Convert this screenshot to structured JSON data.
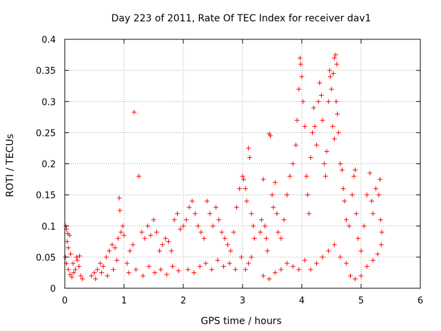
{
  "chart_data": {
    "type": "scatter",
    "title": "Day 223 of 2011, Rate Of TEC Index for receiver dav1",
    "xlabel": "GPS time / hours",
    "ylabel": "ROTI / TECUs",
    "xlim": [
      0,
      6
    ],
    "ylim": [
      0,
      0.4
    ],
    "x_ticks": [
      0,
      1,
      2,
      3,
      4,
      5,
      6
    ],
    "y_ticks": [
      0,
      0.05,
      0.1,
      0.15,
      0.2,
      0.25,
      0.3,
      0.35,
      0.4
    ],
    "x_tick_labels": [
      "0",
      "1",
      "2",
      "3",
      "4",
      "5",
      "6"
    ],
    "y_tick_labels": [
      "0",
      "0.05",
      "0.1",
      "0.15",
      "0.2",
      "0.25",
      "0.3",
      "0.35",
      "0.4"
    ],
    "grid": true,
    "marker": "+",
    "color": "#ff0000",
    "series": [
      {
        "name": "dav1",
        "points": [
          [
            0.02,
            0.1
          ],
          [
            0.03,
            0.095
          ],
          [
            0.05,
            0.088
          ],
          [
            0.04,
            0.075
          ],
          [
            0.06,
            0.065
          ],
          [
            0.08,
            0.085
          ],
          [
            0.01,
            0.05
          ],
          [
            0.03,
            0.04
          ],
          [
            0.06,
            0.03
          ],
          [
            0.09,
            0.022
          ],
          [
            0.12,
            0.018
          ],
          [
            0.15,
            0.025
          ],
          [
            0.18,
            0.03
          ],
          [
            0.21,
            0.045
          ],
          [
            0.24,
            0.035
          ],
          [
            0.27,
            0.02
          ],
          [
            0.3,
            0.015
          ],
          [
            0.1,
            0.055
          ],
          [
            0.2,
            0.05
          ],
          [
            0.25,
            0.052
          ],
          [
            0.14,
            0.04
          ],
          [
            0.45,
            0.02
          ],
          [
            0.5,
            0.025
          ],
          [
            0.55,
            0.03
          ],
          [
            0.6,
            0.04
          ],
          [
            0.65,
            0.035
          ],
          [
            0.7,
            0.05
          ],
          [
            0.75,
            0.06
          ],
          [
            0.8,
            0.07
          ],
          [
            0.85,
            0.065
          ],
          [
            0.9,
            0.08
          ],
          [
            0.92,
            0.145
          ],
          [
            0.93,
            0.125
          ],
          [
            0.95,
            0.09
          ],
          [
            0.98,
            0.1
          ],
          [
            1.0,
            0.085
          ],
          [
            0.52,
            0.015
          ],
          [
            0.62,
            0.025
          ],
          [
            0.72,
            0.02
          ],
          [
            0.82,
            0.03
          ],
          [
            0.88,
            0.045
          ],
          [
            1.05,
            0.04
          ],
          [
            1.1,
            0.06
          ],
          [
            1.15,
            0.07
          ],
          [
            1.17,
            0.283
          ],
          [
            1.25,
            0.18
          ],
          [
            1.3,
            0.09
          ],
          [
            1.35,
            0.08
          ],
          [
            1.4,
            0.1
          ],
          [
            1.45,
            0.085
          ],
          [
            1.5,
            0.11
          ],
          [
            1.55,
            0.09
          ],
          [
            1.6,
            0.06
          ],
          [
            1.65,
            0.07
          ],
          [
            1.7,
            0.08
          ],
          [
            1.75,
            0.075
          ],
          [
            1.8,
            0.06
          ],
          [
            1.85,
            0.11
          ],
          [
            1.9,
            0.12
          ],
          [
            1.95,
            0.095
          ],
          [
            2.0,
            0.1
          ],
          [
            1.08,
            0.025
          ],
          [
            1.2,
            0.03
          ],
          [
            1.32,
            0.02
          ],
          [
            1.42,
            0.035
          ],
          [
            1.52,
            0.025
          ],
          [
            1.62,
            0.03
          ],
          [
            1.72,
            0.022
          ],
          [
            1.82,
            0.035
          ],
          [
            1.92,
            0.028
          ],
          [
            2.05,
            0.11
          ],
          [
            2.1,
            0.13
          ],
          [
            2.15,
            0.14
          ],
          [
            2.2,
            0.12
          ],
          [
            2.25,
            0.1
          ],
          [
            2.3,
            0.09
          ],
          [
            2.35,
            0.08
          ],
          [
            2.4,
            0.14
          ],
          [
            2.45,
            0.12
          ],
          [
            2.5,
            0.1
          ],
          [
            2.55,
            0.13
          ],
          [
            2.6,
            0.11
          ],
          [
            2.65,
            0.09
          ],
          [
            2.7,
            0.08
          ],
          [
            2.75,
            0.07
          ],
          [
            2.8,
            0.06
          ],
          [
            2.85,
            0.09
          ],
          [
            2.9,
            0.13
          ],
          [
            2.95,
            0.16
          ],
          [
            3.0,
            0.18
          ],
          [
            2.08,
            0.03
          ],
          [
            2.18,
            0.025
          ],
          [
            2.28,
            0.035
          ],
          [
            2.38,
            0.04
          ],
          [
            2.48,
            0.03
          ],
          [
            2.58,
            0.045
          ],
          [
            2.68,
            0.035
          ],
          [
            2.78,
            0.04
          ],
          [
            2.88,
            0.03
          ],
          [
            2.98,
            0.05
          ],
          [
            3.02,
            0.175
          ],
          [
            3.05,
            0.16
          ],
          [
            3.07,
            0.14
          ],
          [
            3.1,
            0.225
          ],
          [
            3.12,
            0.21
          ],
          [
            3.15,
            0.12
          ],
          [
            3.18,
            0.1
          ],
          [
            3.2,
            0.08
          ],
          [
            3.05,
            0.03
          ],
          [
            3.1,
            0.04
          ],
          [
            3.15,
            0.05
          ],
          [
            3.3,
            0.09
          ],
          [
            3.32,
            0.11
          ],
          [
            3.35,
            0.175
          ],
          [
            3.38,
            0.1
          ],
          [
            3.4,
            0.08
          ],
          [
            3.42,
            0.06
          ],
          [
            3.45,
            0.248
          ],
          [
            3.47,
            0.245
          ],
          [
            3.5,
            0.15
          ],
          [
            3.52,
            0.13
          ],
          [
            3.55,
            0.17
          ],
          [
            3.58,
            0.12
          ],
          [
            3.6,
            0.09
          ],
          [
            3.65,
            0.08
          ],
          [
            3.7,
            0.11
          ],
          [
            3.75,
            0.15
          ],
          [
            3.8,
            0.18
          ],
          [
            3.85,
            0.2
          ],
          [
            3.9,
            0.23
          ],
          [
            3.92,
            0.27
          ],
          [
            3.95,
            0.32
          ],
          [
            3.97,
            0.37
          ],
          [
            3.98,
            0.36
          ],
          [
            4.0,
            0.34
          ],
          [
            4.02,
            0.3
          ],
          [
            4.05,
            0.26
          ],
          [
            4.08,
            0.18
          ],
          [
            4.1,
            0.15
          ],
          [
            4.12,
            0.12
          ],
          [
            3.35,
            0.02
          ],
          [
            3.45,
            0.015
          ],
          [
            3.55,
            0.025
          ],
          [
            3.65,
            0.03
          ],
          [
            3.75,
            0.04
          ],
          [
            3.85,
            0.035
          ],
          [
            3.95,
            0.03
          ],
          [
            4.05,
            0.045
          ],
          [
            4.15,
            0.21
          ],
          [
            4.18,
            0.25
          ],
          [
            4.2,
            0.29
          ],
          [
            4.22,
            0.26
          ],
          [
            4.25,
            0.23
          ],
          [
            4.28,
            0.3
          ],
          [
            4.3,
            0.33
          ],
          [
            4.33,
            0.31
          ],
          [
            4.35,
            0.27
          ],
          [
            4.38,
            0.2
          ],
          [
            4.4,
            0.18
          ],
          [
            4.42,
            0.22
          ],
          [
            4.45,
            0.3
          ],
          [
            4.47,
            0.35
          ],
          [
            4.48,
            0.34
          ],
          [
            4.5,
            0.32
          ],
          [
            4.52,
            0.26
          ],
          [
            4.55,
            0.24
          ],
          [
            4.58,
            0.3
          ],
          [
            4.6,
            0.28
          ],
          [
            4.62,
            0.25
          ],
          [
            4.65,
            0.2
          ],
          [
            4.68,
            0.19
          ],
          [
            4.7,
            0.16
          ],
          [
            4.72,
            0.14
          ],
          [
            4.75,
            0.11
          ],
          [
            4.55,
            0.37
          ],
          [
            4.57,
            0.375
          ],
          [
            4.59,
            0.36
          ],
          [
            4.53,
            0.345
          ],
          [
            4.15,
            0.03
          ],
          [
            4.25,
            0.04
          ],
          [
            4.35,
            0.05
          ],
          [
            4.45,
            0.06
          ],
          [
            4.55,
            0.07
          ],
          [
            4.65,
            0.05
          ],
          [
            4.75,
            0.04
          ],
          [
            4.8,
            0.1
          ],
          [
            4.85,
            0.15
          ],
          [
            4.88,
            0.18
          ],
          [
            4.9,
            0.19
          ],
          [
            4.92,
            0.12
          ],
          [
            4.95,
            0.08
          ],
          [
            5.0,
            0.06
          ],
          [
            5.05,
            0.1
          ],
          [
            5.1,
            0.15
          ],
          [
            5.15,
            0.185
          ],
          [
            5.18,
            0.14
          ],
          [
            5.2,
            0.12
          ],
          [
            5.25,
            0.16
          ],
          [
            5.3,
            0.15
          ],
          [
            5.32,
            0.175
          ],
          [
            5.33,
            0.11
          ],
          [
            5.35,
            0.09
          ],
          [
            4.82,
            0.02
          ],
          [
            4.9,
            0.015
          ],
          [
            5.0,
            0.02
          ],
          [
            5.1,
            0.035
          ],
          [
            5.2,
            0.045
          ],
          [
            5.28,
            0.055
          ],
          [
            5.34,
            0.07
          ]
        ]
      }
    ]
  }
}
